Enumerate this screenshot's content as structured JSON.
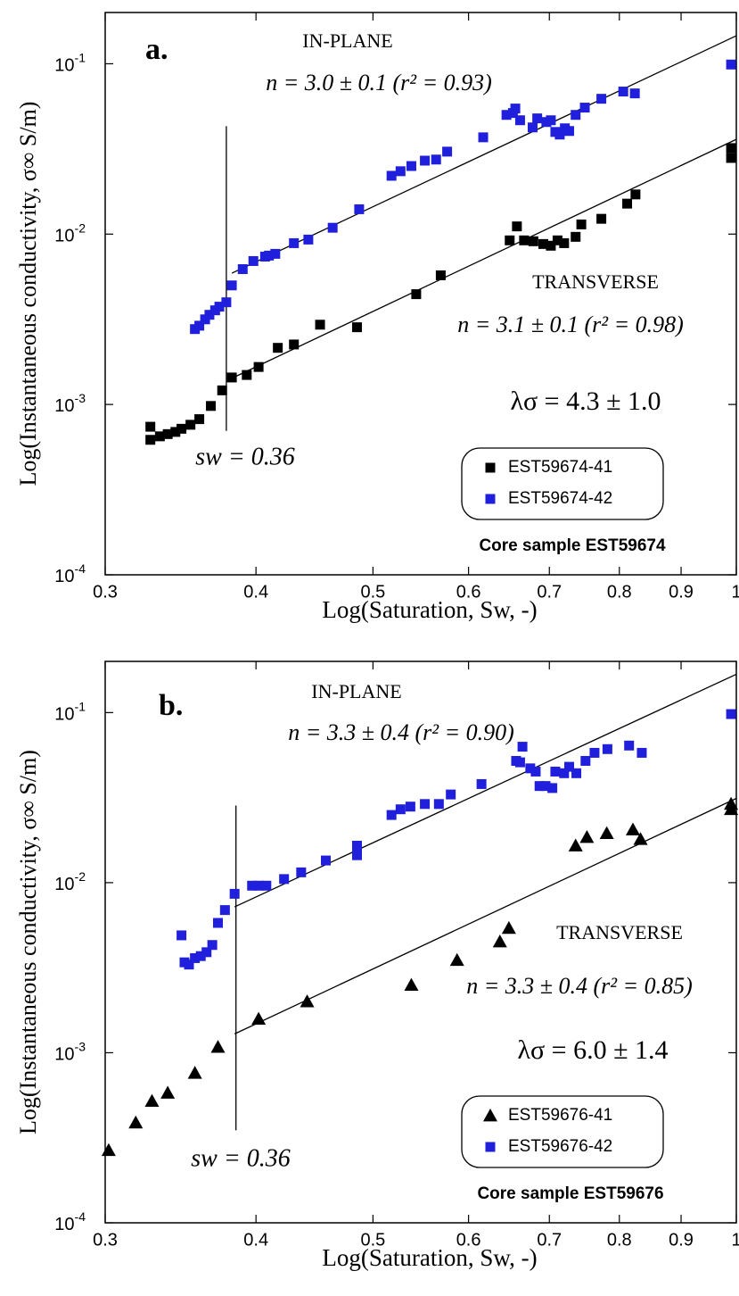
{
  "chart_data": [
    {
      "type": "scatter",
      "xscale": "log",
      "yscale": "log",
      "grid": false,
      "legend": "lower right",
      "x_label": "Log(Saturation, Sw, -)",
      "y_label": "Log(Instantaneous conductivity, σ∞ S/m)",
      "annotations": [
        "a.",
        "IN-PLANE",
        "n = 3.0 ± 0.1 (r² = 0.93)",
        "TRANSVERSE",
        "n = 3.1 ± 0.1 (r² = 0.98)",
        "λσ = 4.3 ± 1.0",
        "sw = 0.36",
        "Core sample EST59674"
      ],
      "xlim": [
        0.3,
        1
      ],
      "xticks": [
        0.3,
        0.4,
        0.5,
        0.6,
        0.7,
        0.8,
        0.9,
        1
      ],
      "ylim": [
        0.0001,
        0.2
      ],
      "yticks": [
        {
          "value": 0.0001,
          "label": "10",
          "exponent": "-4"
        },
        {
          "value": 0.001,
          "label": "10",
          "exponent": "-3"
        },
        {
          "value": 0.01,
          "label": "10",
          "exponent": "-2"
        },
        {
          "value": 0.1,
          "label": "10",
          "exponent": "-1"
        }
      ],
      "series": [
        {
          "name": "EST59674-41",
          "color": "#000000",
          "marker": "square",
          "x": [
            0.327,
            0.327,
            0.333,
            0.338,
            0.343,
            0.347,
            0.353,
            0.359,
            0.367,
            0.375,
            0.382,
            0.393,
            0.402,
            0.417,
            0.43,
            0.452,
            0.485,
            0.543,
            0.569,
            0.649,
            0.658,
            0.667,
            0.679,
            0.692,
            0.702,
            0.711,
            0.72,
            0.736,
            0.744,
            0.773,
            0.812,
            0.825,
            0.99,
            0.99
          ],
          "values": [
            0.00074,
            0.00062,
            0.00065,
            0.00067,
            0.00069,
            0.00072,
            0.00076,
            0.00082,
            0.00098,
            0.00121,
            0.00144,
            0.00149,
            0.00166,
            0.00215,
            0.00225,
            0.00294,
            0.00284,
            0.00444,
            0.00573,
            0.00919,
            0.0111,
            0.00919,
            0.00908,
            0.00875,
            0.00855,
            0.00919,
            0.00885,
            0.00964,
            0.0114,
            0.0123,
            0.0151,
            0.0171,
            0.032,
            0.028
          ]
        },
        {
          "name": "EST59674-42",
          "color": "#1f1fdc",
          "marker": "square",
          "x": [
            0.356,
            0.359,
            0.363,
            0.366,
            0.37,
            0.373,
            0.378,
            0.382,
            0.39,
            0.398,
            0.407,
            0.41,
            0.415,
            0.43,
            0.442,
            0.463,
            0.487,
            0.518,
            0.527,
            0.538,
            0.552,
            0.564,
            0.576,
            0.617,
            0.645,
            0.653,
            0.656,
            0.662,
            0.678,
            0.684,
            0.696,
            0.702,
            0.708,
            0.714,
            0.721,
            0.727,
            0.736,
            0.749,
            0.773,
            0.806,
            0.824,
            0.99
          ],
          "values": [
            0.00277,
            0.0029,
            0.00316,
            0.00336,
            0.00357,
            0.00375,
            0.00398,
            0.005,
            0.00623,
            0.00695,
            0.00738,
            0.00748,
            0.00766,
            0.00885,
            0.00929,
            0.0109,
            0.014,
            0.022,
            0.0234,
            0.0251,
            0.027,
            0.0274,
            0.0305,
            0.037,
            0.0501,
            0.0514,
            0.0546,
            0.0466,
            0.0423,
            0.0478,
            0.0455,
            0.0466,
            0.0398,
            0.0384,
            0.0418,
            0.0403,
            0.0501,
            0.0553,
            0.0623,
            0.0687,
            0.067,
            0.099
          ]
        }
      ],
      "fit_lines": [
        {
          "x": [
            0.382,
            1
          ],
          "values": [
            0.0059,
            0.146
          ]
        },
        {
          "x": [
            0.38,
            1
          ],
          "values": [
            0.0014,
            0.036
          ]
        }
      ],
      "reference_lines": [
        {
          "x": [
            0.378,
            0.378
          ],
          "values": [
            0.0007,
            0.043
          ]
        }
      ]
    },
    {
      "type": "scatter",
      "xscale": "log",
      "yscale": "log",
      "grid": false,
      "legend": "lower right",
      "x_label": "Log(Saturation, Sw, -)",
      "y_label": "Log(Instantaneous conductivity, σ∞ S/m)",
      "annotations": [
        "b.",
        "IN-PLANE",
        "n = 3.3 ± 0.4 (r² = 0.90)",
        "TRANSVERSE",
        "n = 3.3 ± 0.4 (r² = 0.85)",
        "λσ = 6.0 ± 1.4",
        "sw = 0.36",
        "Core sample EST59676"
      ],
      "xlim": [
        0.3,
        1
      ],
      "xticks": [
        0.3,
        0.4,
        0.5,
        0.6,
        0.7,
        0.8,
        0.9,
        1
      ],
      "ylim": [
        0.0001,
        0.2
      ],
      "yticks": [
        {
          "value": 0.0001,
          "label": "10",
          "exponent": "-4"
        },
        {
          "value": 0.001,
          "label": "10",
          "exponent": "-3"
        },
        {
          "value": 0.01,
          "label": "10",
          "exponent": "-2"
        },
        {
          "value": 0.1,
          "label": "10",
          "exponent": "-1"
        }
      ],
      "series": [
        {
          "name": "EST59676-41",
          "color": "#000000",
          "marker": "triangle",
          "x": [
            0.302,
            0.318,
            0.328,
            0.338,
            0.356,
            0.372,
            0.402,
            0.441,
            0.538,
            0.587,
            0.637,
            0.648,
            0.736,
            0.752,
            0.781,
            0.821,
            0.833,
            0.99,
            0.99
          ],
          "values": [
            0.000267,
            0.000388,
            0.00052,
            0.00058,
            0.00076,
            0.00108,
            0.00158,
            0.002,
            0.0025,
            0.0035,
            0.0045,
            0.0054,
            0.0165,
            0.0185,
            0.0195,
            0.0205,
            0.018,
            0.029,
            0.027
          ]
        },
        {
          "name": "EST59676-42",
          "color": "#1f1fdc",
          "marker": "square",
          "x": [
            0.347,
            0.349,
            0.352,
            0.356,
            0.36,
            0.364,
            0.368,
            0.372,
            0.377,
            0.384,
            0.397,
            0.402,
            0.408,
            0.422,
            0.436,
            0.457,
            0.485,
            0.485,
            0.518,
            0.527,
            0.537,
            0.552,
            0.567,
            0.58,
            0.615,
            0.657,
            0.662,
            0.665,
            0.675,
            0.682,
            0.687,
            0.695,
            0.704,
            0.708,
            0.72,
            0.727,
            0.737,
            0.75,
            0.763,
            0.782,
            0.815,
            0.835,
            0.99
          ],
          "values": [
            0.0049,
            0.0034,
            0.0033,
            0.0036,
            0.0037,
            0.0039,
            0.0043,
            0.0058,
            0.0069,
            0.0086,
            0.0096,
            0.0096,
            0.0096,
            0.0105,
            0.0115,
            0.0135,
            0.0145,
            0.0165,
            0.025,
            0.027,
            0.028,
            0.029,
            0.029,
            0.033,
            0.038,
            0.052,
            0.051,
            0.063,
            0.047,
            0.045,
            0.037,
            0.037,
            0.036,
            0.045,
            0.044,
            0.048,
            0.044,
            0.052,
            0.058,
            0.061,
            0.064,
            0.058,
            0.098
          ]
        }
      ],
      "fit_lines": [
        {
          "x": [
            0.384,
            1
          ],
          "values": [
            0.0072,
            0.168
          ]
        },
        {
          "x": [
            0.384,
            1
          ],
          "values": [
            0.00129,
            0.0313
          ]
        }
      ],
      "reference_lines": [
        {
          "x": [
            0.385,
            0.385
          ],
          "values": [
            0.00035,
            0.0284
          ]
        }
      ]
    }
  ]
}
